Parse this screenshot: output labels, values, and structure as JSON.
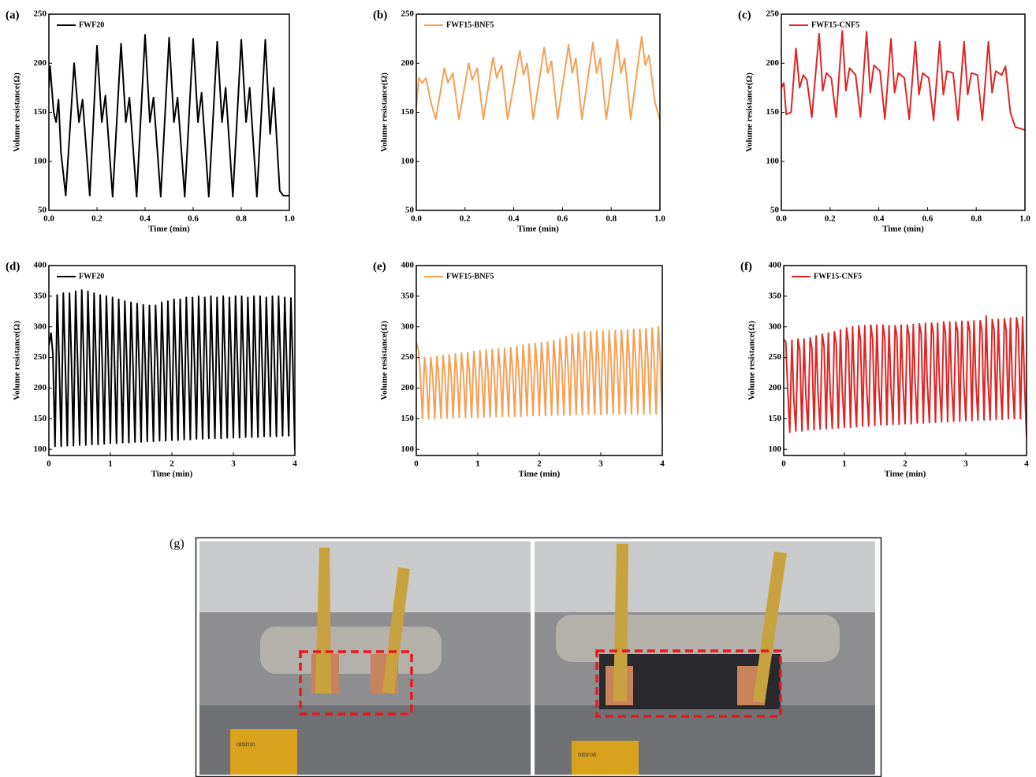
{
  "chart_data": [
    {
      "type": "line",
      "panel": "(a)",
      "ylabel": "Volume resistance(Ω)",
      "xlabel": "Time (min)",
      "xlim": [
        0,
        1
      ],
      "ylim": [
        50,
        250
      ],
      "xticks": [
        {
          "value": 0,
          "label": "0.0"
        },
        0.2,
        0.4,
        0.6,
        0.8,
        {
          "value": 1,
          "label": "1.0"
        }
      ],
      "yticks": [
        50,
        100,
        150,
        200,
        250
      ],
      "x": [
        0,
        0.005,
        0.02,
        0.03,
        0.04,
        0.05,
        0.07,
        0.105,
        0.125,
        0.14,
        0.17,
        0.2,
        0.22,
        0.235,
        0.265,
        0.3,
        0.32,
        0.335,
        0.365,
        0.4,
        0.42,
        0.435,
        0.465,
        0.5,
        0.52,
        0.535,
        0.565,
        0.6,
        0.62,
        0.635,
        0.665,
        0.7,
        0.72,
        0.735,
        0.765,
        0.8,
        0.82,
        0.835,
        0.865,
        0.9,
        0.92,
        0.935,
        0.96,
        0.975,
        1
      ],
      "series": [
        {
          "name": "FWF20",
          "color": "#000000",
          "values": [
            175,
            197,
            150,
            140,
            163,
            110,
            65,
            200,
            140,
            163,
            65,
            218,
            140,
            167,
            64,
            220,
            140,
            165,
            64,
            229,
            140,
            165,
            64,
            226,
            140,
            165,
            64,
            225,
            140,
            170,
            64,
            222,
            140,
            175,
            64,
            224,
            140,
            175,
            64,
            224,
            128,
            175,
            70,
            65,
            65
          ]
        }
      ]
    },
    {
      "type": "line",
      "panel": "(b)",
      "ylabel": "Volume resistance(Ω)",
      "xlabel": "Time (min)",
      "xlim": [
        0,
        1
      ],
      "ylim": [
        50,
        250
      ],
      "xticks": [
        {
          "value": 0,
          "label": "0.0"
        },
        0.2,
        0.4,
        0.6,
        0.8,
        {
          "value": 1,
          "label": "1.0"
        }
      ],
      "yticks": [
        50,
        100,
        150,
        200,
        250
      ],
      "x": [
        0,
        0.01,
        0.025,
        0.04,
        0.06,
        0.08,
        0.115,
        0.13,
        0.15,
        0.175,
        0.215,
        0.23,
        0.25,
        0.275,
        0.315,
        0.33,
        0.35,
        0.375,
        0.425,
        0.44,
        0.455,
        0.48,
        0.525,
        0.54,
        0.555,
        0.58,
        0.625,
        0.64,
        0.655,
        0.68,
        0.725,
        0.74,
        0.755,
        0.78,
        0.825,
        0.84,
        0.855,
        0.88,
        0.925,
        0.94,
        0.955,
        0.98,
        1
      ],
      "series": [
        {
          "name": "FWF15-BNF5",
          "color": "#f4a055",
          "values": [
            155,
            185,
            180,
            185,
            160,
            143,
            195,
            180,
            190,
            143,
            200,
            183,
            195,
            143,
            206,
            185,
            198,
            143,
            213,
            188,
            200,
            143,
            216,
            190,
            202,
            143,
            219,
            190,
            205,
            143,
            221,
            190,
            205,
            143,
            224,
            190,
            205,
            143,
            227,
            198,
            208,
            160,
            142
          ]
        }
      ]
    },
    {
      "type": "line",
      "panel": "(c)",
      "ylabel": "Volume resistance(Ω)",
      "xlabel": "Time (min)",
      "xlim": [
        0,
        1
      ],
      "ylim": [
        50,
        250
      ],
      "xticks": [
        {
          "value": 0,
          "label": "0.0"
        },
        0.2,
        0.4,
        0.6,
        0.8,
        {
          "value": 1,
          "label": "1.0"
        }
      ],
      "yticks": [
        50,
        100,
        150,
        200,
        250
      ],
      "x": [
        0,
        0.01,
        0.02,
        0.04,
        0.06,
        0.075,
        0.09,
        0.105,
        0.125,
        0.155,
        0.17,
        0.185,
        0.205,
        0.225,
        0.25,
        0.265,
        0.28,
        0.305,
        0.325,
        0.35,
        0.365,
        0.38,
        0.405,
        0.425,
        0.45,
        0.465,
        0.48,
        0.505,
        0.525,
        0.55,
        0.565,
        0.58,
        0.605,
        0.625,
        0.65,
        0.665,
        0.68,
        0.705,
        0.725,
        0.75,
        0.765,
        0.78,
        0.805,
        0.825,
        0.85,
        0.865,
        0.88,
        0.905,
        0.92,
        0.94,
        0.96,
        1
      ],
      "series": [
        {
          "name": "FWF15-CNF5",
          "color": "#e02424",
          "values": [
            175,
            180,
            148,
            150,
            215,
            175,
            188,
            183,
            145,
            230,
            172,
            190,
            185,
            145,
            233,
            172,
            195,
            188,
            145,
            232,
            170,
            198,
            192,
            143,
            225,
            170,
            190,
            185,
            143,
            222,
            168,
            190,
            185,
            142,
            222,
            168,
            192,
            190,
            142,
            222,
            168,
            190,
            188,
            142,
            222,
            170,
            192,
            188,
            197,
            150,
            135,
            132
          ]
        }
      ]
    },
    {
      "type": "line",
      "panel": "(d)",
      "ylabel": "Volume resistance(Ω)",
      "xlabel": "Time (min)",
      "xlim": [
        0,
        4
      ],
      "ylim": [
        90,
        400
      ],
      "xticks": [
        0,
        1,
        2,
        3,
        4
      ],
      "yticks": [
        100,
        150,
        200,
        250,
        300,
        350,
        400
      ],
      "x": [
        0,
        0.035,
        0.065,
        0.1,
        0.135,
        0.165,
        0.2,
        0.235,
        0.265,
        0.3,
        0.335,
        0.365,
        0.4,
        0.435,
        0.465,
        0.5,
        0.535,
        0.565,
        0.6,
        0.635,
        0.665,
        0.7,
        0.735,
        0.765,
        0.8,
        0.835,
        0.865,
        0.9,
        0.935,
        0.965,
        1,
        1.035,
        1.065,
        1.1,
        1.135,
        1.165,
        1.2,
        1.235,
        1.265,
        1.3,
        1.335,
        1.365,
        1.4,
        1.435,
        1.465,
        1.5,
        1.535,
        1.565,
        1.6,
        1.635,
        1.665,
        1.7,
        1.735,
        1.765,
        1.8,
        1.835,
        1.865,
        1.9,
        1.935,
        1.965,
        2,
        2.035,
        2.065,
        2.1,
        2.135,
        2.165,
        2.2,
        2.235,
        2.265,
        2.3,
        2.335,
        2.365,
        2.4,
        2.435,
        2.465,
        2.5,
        2.535,
        2.565,
        2.6,
        2.635,
        2.665,
        2.7,
        2.735,
        2.765,
        2.8,
        2.835,
        2.865,
        2.9,
        2.935,
        2.965,
        3,
        3.035,
        3.065,
        3.1,
        3.135,
        3.165,
        3.2,
        3.235,
        3.265,
        3.3,
        3.335,
        3.365,
        3.4,
        3.435,
        3.465,
        3.5,
        3.535,
        3.565,
        3.6,
        3.635,
        3.665,
        3.7,
        3.735,
        3.765,
        3.8,
        3.835,
        3.865,
        3.9,
        3.935,
        3.965,
        4
      ],
      "series": [
        {
          "name": "FWF20",
          "color": "#000000",
          "values": [
            270,
            290,
            255,
            105,
            352,
            252,
            105,
            355,
            248,
            106,
            355,
            252,
            106,
            358,
            250,
            107,
            360,
            254,
            107,
            358,
            248,
            108,
            355,
            252,
            108,
            352,
            250,
            109,
            350,
            248,
            110,
            348,
            252,
            110,
            345,
            246,
            111,
            342,
            250,
            111,
            340,
            248,
            112,
            338,
            245,
            112,
            336,
            250,
            113,
            335,
            244,
            113,
            335,
            248,
            114,
            340,
            246,
            114,
            342,
            250,
            115,
            345,
            248,
            115,
            345,
            250,
            116,
            348,
            246,
            116,
            348,
            250,
            117,
            350,
            248,
            117,
            348,
            252,
            118,
            350,
            246,
            118,
            348,
            250,
            118,
            350,
            248,
            119,
            348,
            252,
            119,
            350,
            250,
            119,
            350,
            246,
            120,
            348,
            252,
            120,
            350,
            248,
            120,
            350,
            250,
            121,
            348,
            246,
            121,
            350,
            252,
            121,
            350,
            250,
            122,
            348,
            248,
            122,
            347,
            246,
            100
          ]
        }
      ]
    },
    {
      "type": "line",
      "panel": "(e)",
      "ylabel": "Volume resistance(Ω)",
      "xlabel": "Time (min)",
      "xlim": [
        0,
        4
      ],
      "ylim": [
        90,
        400
      ],
      "xticks": [
        0,
        1,
        2,
        3,
        4
      ],
      "yticks": [
        100,
        150,
        200,
        250,
        300,
        350,
        400
      ],
      "x": [
        0,
        0.035,
        0.065,
        0.1,
        0.135,
        0.165,
        0.2,
        0.235,
        0.265,
        0.3,
        0.335,
        0.365,
        0.4,
        0.435,
        0.465,
        0.5,
        0.535,
        0.565,
        0.6,
        0.635,
        0.665,
        0.7,
        0.735,
        0.765,
        0.8,
        0.835,
        0.865,
        0.9,
        0.935,
        0.965,
        1,
        1.035,
        1.065,
        1.1,
        1.135,
        1.165,
        1.2,
        1.235,
        1.265,
        1.3,
        1.335,
        1.365,
        1.4,
        1.435,
        1.465,
        1.5,
        1.535,
        1.565,
        1.6,
        1.635,
        1.665,
        1.7,
        1.735,
        1.765,
        1.8,
        1.835,
        1.865,
        1.9,
        1.935,
        1.965,
        2,
        2.035,
        2.065,
        2.1,
        2.135,
        2.165,
        2.2,
        2.235,
        2.265,
        2.3,
        2.335,
        2.365,
        2.4,
        2.435,
        2.465,
        2.5,
        2.535,
        2.565,
        2.6,
        2.635,
        2.665,
        2.7,
        2.735,
        2.765,
        2.8,
        2.835,
        2.865,
        2.9,
        2.935,
        2.965,
        3,
        3.035,
        3.065,
        3.1,
        3.135,
        3.165,
        3.2,
        3.235,
        3.265,
        3.3,
        3.335,
        3.365,
        3.4,
        3.435,
        3.465,
        3.5,
        3.535,
        3.565,
        3.6,
        3.635,
        3.665,
        3.7,
        3.735,
        3.765,
        3.8,
        3.835,
        3.865,
        3.9,
        3.935,
        3.965,
        4
      ],
      "series": [
        {
          "name": "FWF15-BNF5",
          "color": "#f4a055",
          "values": [
            275,
            262,
            225,
            150,
            250,
            220,
            150,
            250,
            222,
            150,
            252,
            220,
            151,
            253,
            222,
            151,
            255,
            224,
            151,
            256,
            222,
            152,
            257,
            225,
            152,
            258,
            224,
            152,
            260,
            226,
            152,
            261,
            225,
            153,
            262,
            228,
            153,
            263,
            226,
            153,
            264,
            230,
            154,
            265,
            228,
            154,
            266,
            232,
            154,
            268,
            230,
            154,
            270,
            234,
            155,
            272,
            232,
            155,
            273,
            236,
            155,
            274,
            235,
            155,
            275,
            238,
            156,
            278,
            236,
            156,
            280,
            240,
            156,
            284,
            240,
            156,
            288,
            244,
            157,
            290,
            242,
            157,
            292,
            246,
            157,
            292,
            244,
            157,
            293,
            248,
            157,
            293,
            246,
            158,
            294,
            250,
            158,
            294,
            248,
            158,
            295,
            250,
            158,
            295,
            248,
            158,
            296,
            252,
            158,
            296,
            250,
            158,
            297,
            250,
            158,
            298,
            252,
            158,
            300,
            250,
            150
          ]
        }
      ]
    },
    {
      "type": "line",
      "panel": "(f)",
      "ylabel": "Volume resistance(Ω)",
      "xlabel": "Time (min)",
      "xlim": [
        0,
        4
      ],
      "ylim": [
        90,
        400
      ],
      "xticks": [
        0,
        1,
        2,
        3,
        4
      ],
      "yticks": [
        100,
        150,
        200,
        250,
        300,
        350,
        400
      ],
      "x": [
        0,
        0.035,
        0.065,
        0.1,
        0.135,
        0.165,
        0.2,
        0.235,
        0.265,
        0.3,
        0.335,
        0.365,
        0.4,
        0.435,
        0.465,
        0.5,
        0.535,
        0.565,
        0.6,
        0.635,
        0.665,
        0.7,
        0.735,
        0.765,
        0.8,
        0.835,
        0.865,
        0.9,
        0.935,
        0.965,
        1,
        1.035,
        1.065,
        1.1,
        1.135,
        1.165,
        1.2,
        1.235,
        1.265,
        1.3,
        1.335,
        1.365,
        1.4,
        1.435,
        1.465,
        1.5,
        1.535,
        1.565,
        1.6,
        1.635,
        1.665,
        1.7,
        1.735,
        1.765,
        1.8,
        1.835,
        1.865,
        1.9,
        1.935,
        1.965,
        2,
        2.035,
        2.065,
        2.1,
        2.135,
        2.165,
        2.2,
        2.235,
        2.265,
        2.3,
        2.335,
        2.365,
        2.4,
        2.435,
        2.465,
        2.5,
        2.535,
        2.565,
        2.6,
        2.635,
        2.665,
        2.7,
        2.735,
        2.765,
        2.8,
        2.835,
        2.865,
        2.9,
        2.935,
        2.965,
        3,
        3.035,
        3.065,
        3.1,
        3.135,
        3.165,
        3.2,
        3.235,
        3.265,
        3.3,
        3.335,
        3.365,
        3.4,
        3.435,
        3.465,
        3.5,
        3.535,
        3.565,
        3.6,
        3.635,
        3.665,
        3.7,
        3.735,
        3.765,
        3.8,
        3.835,
        3.865,
        3.9,
        3.935,
        3.965,
        4
      ],
      "series": [
        {
          "name": "FWF15-CNF5",
          "color": "#e02424",
          "values": [
            280,
            275,
            200,
            128,
            278,
            185,
            130,
            280,
            262,
            130,
            280,
            190,
            132,
            282,
            265,
            132,
            285,
            192,
            133,
            288,
            268,
            134,
            290,
            195,
            134,
            292,
            272,
            135,
            295,
            198,
            136,
            298,
            275,
            136,
            300,
            200,
            137,
            302,
            278,
            138,
            302,
            202,
            138,
            303,
            280,
            139,
            303,
            205,
            140,
            303,
            282,
            140,
            302,
            205,
            141,
            302,
            285,
            141,
            303,
            205,
            142,
            303,
            285,
            142,
            304,
            208,
            143,
            305,
            288,
            143,
            306,
            208,
            144,
            306,
            290,
            144,
            306,
            210,
            145,
            308,
            290,
            145,
            308,
            210,
            146,
            308,
            292,
            146,
            309,
            212,
            147,
            309,
            292,
            147,
            310,
            212,
            148,
            310,
            295,
            148,
            318,
            212,
            148,
            312,
            295,
            149,
            312,
            215,
            149,
            313,
            295,
            150,
            314,
            215,
            150,
            315,
            296,
            150,
            316,
            215,
            120
          ]
        }
      ]
    }
  ],
  "photo": {
    "label": "(g)",
    "sensor_text": "omron"
  }
}
